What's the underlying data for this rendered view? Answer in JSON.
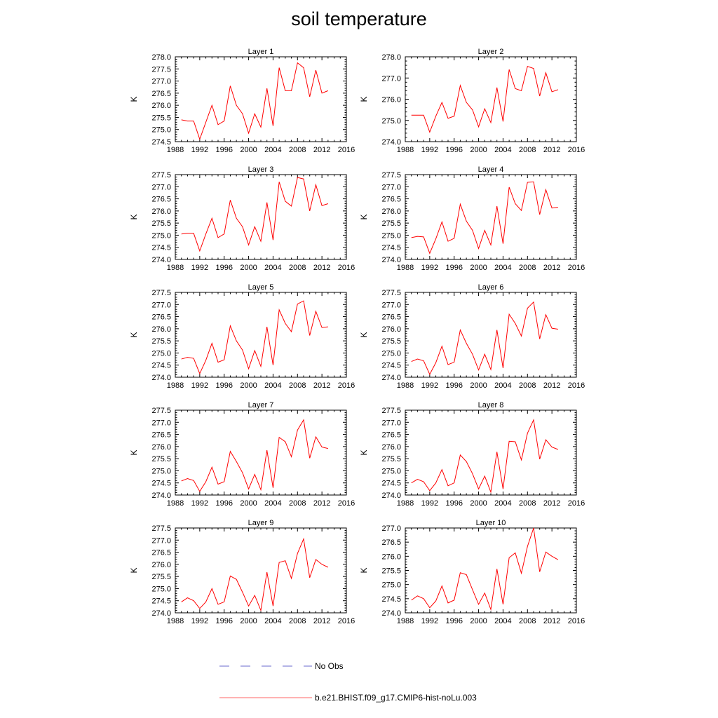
{
  "figure": {
    "title": "soil temperature",
    "legend": [
      {
        "label": "No Obs",
        "color": "#6a6acd",
        "dash": true
      },
      {
        "label": "b.e21.BHIST.f09_g17.CMIP6-hist-noLu.003",
        "color": "#ff6666",
        "dash": false
      }
    ]
  },
  "chart_data": [
    {
      "type": "line",
      "title": "Layer 1",
      "xlabel": "",
      "ylabel": "K",
      "xlim": [
        1988,
        2016
      ],
      "ylim": [
        274.5,
        278.0
      ],
      "xticks": [
        1988,
        1992,
        1996,
        2000,
        2004,
        2008,
        2012,
        2016
      ],
      "yticks": [
        274.5,
        275.0,
        275.5,
        276.0,
        276.5,
        277.0,
        277.5,
        278.0
      ],
      "series": [
        {
          "color": "#ff0000",
          "x": [
            1989,
            1990,
            1991,
            1992,
            1993,
            1994,
            1995,
            1996,
            1997,
            1998,
            1999,
            2000,
            2001,
            2002,
            2003,
            2004,
            2005,
            2006,
            2007,
            2008,
            2009,
            2010,
            2011,
            2012,
            2013
          ],
          "y": [
            275.4,
            275.35,
            275.35,
            274.6,
            275.3,
            276.0,
            275.2,
            275.35,
            276.8,
            276.0,
            275.65,
            274.85,
            275.65,
            275.1,
            276.7,
            275.15,
            277.55,
            276.6,
            276.6,
            277.75,
            277.55,
            276.35,
            277.45,
            276.5,
            276.6
          ]
        }
      ]
    },
    {
      "type": "line",
      "title": "Layer 2",
      "xlabel": "",
      "ylabel": "K",
      "xlim": [
        1988,
        2016
      ],
      "ylim": [
        274.0,
        278.0
      ],
      "xticks": [
        1988,
        1992,
        1996,
        2000,
        2004,
        2008,
        2012,
        2016
      ],
      "yticks": [
        274.0,
        275.0,
        276.0,
        277.0,
        278.0
      ],
      "series": [
        {
          "color": "#ff0000",
          "x": [
            1989,
            1990,
            1991,
            1992,
            1993,
            1994,
            1995,
            1996,
            1997,
            1998,
            1999,
            2000,
            2001,
            2002,
            2003,
            2004,
            2005,
            2006,
            2007,
            2008,
            2009,
            2010,
            2011,
            2012,
            2013
          ],
          "y": [
            275.25,
            275.25,
            275.25,
            274.45,
            275.2,
            275.85,
            275.1,
            275.2,
            276.65,
            275.85,
            275.5,
            274.7,
            275.55,
            274.9,
            276.55,
            274.95,
            277.4,
            276.5,
            276.4,
            277.55,
            277.45,
            276.15,
            277.25,
            276.35,
            276.45
          ]
        }
      ]
    },
    {
      "type": "line",
      "title": "Layer 3",
      "xlabel": "",
      "ylabel": "K",
      "xlim": [
        1988,
        2016
      ],
      "ylim": [
        274.0,
        277.5
      ],
      "xticks": [
        1988,
        1992,
        1996,
        2000,
        2004,
        2008,
        2012,
        2016
      ],
      "yticks": [
        274.0,
        274.5,
        275.0,
        275.5,
        276.0,
        276.5,
        277.0,
        277.5
      ],
      "series": [
        {
          "color": "#ff0000",
          "x": [
            1989,
            1990,
            1991,
            1992,
            1993,
            1994,
            1995,
            1996,
            1997,
            1998,
            1999,
            2000,
            2001,
            2002,
            2003,
            2004,
            2005,
            2006,
            2007,
            2008,
            2009,
            2010,
            2011,
            2012,
            2013
          ],
          "y": [
            275.05,
            275.08,
            275.08,
            274.35,
            275.05,
            275.7,
            274.9,
            275.05,
            276.45,
            275.7,
            275.35,
            274.6,
            275.35,
            274.75,
            276.35,
            274.8,
            277.2,
            276.4,
            276.2,
            277.38,
            277.32,
            276.0,
            277.08,
            276.22,
            276.3
          ]
        }
      ]
    },
    {
      "type": "line",
      "title": "Layer 4",
      "xlabel": "",
      "ylabel": "K",
      "xlim": [
        1988,
        2016
      ],
      "ylim": [
        274.0,
        277.5
      ],
      "xticks": [
        1988,
        1992,
        1996,
        2000,
        2004,
        2008,
        2012,
        2016
      ],
      "yticks": [
        274.0,
        274.5,
        275.0,
        275.5,
        276.0,
        276.5,
        277.0,
        277.5
      ],
      "series": [
        {
          "color": "#ff0000",
          "x": [
            1989,
            1990,
            1991,
            1992,
            1993,
            1994,
            1995,
            1996,
            1997,
            1998,
            1999,
            2000,
            2001,
            2002,
            2003,
            2004,
            2005,
            2006,
            2007,
            2008,
            2009,
            2010,
            2011,
            2012,
            2013
          ],
          "y": [
            274.9,
            274.95,
            274.93,
            274.25,
            274.85,
            275.55,
            274.75,
            274.87,
            276.28,
            275.58,
            275.2,
            274.45,
            275.2,
            274.6,
            276.2,
            274.65,
            276.98,
            276.3,
            276.02,
            277.18,
            277.2,
            275.85,
            276.88,
            276.12,
            276.15
          ]
        }
      ]
    },
    {
      "type": "line",
      "title": "Layer 5",
      "xlabel": "",
      "ylabel": "K",
      "xlim": [
        1988,
        2016
      ],
      "ylim": [
        274.0,
        277.5
      ],
      "xticks": [
        1988,
        1992,
        1996,
        2000,
        2004,
        2008,
        2012,
        2016
      ],
      "yticks": [
        274.0,
        274.5,
        275.0,
        275.5,
        276.0,
        276.5,
        277.0,
        277.5
      ],
      "series": [
        {
          "color": "#ff0000",
          "x": [
            1989,
            1990,
            1991,
            1992,
            1993,
            1994,
            1995,
            1996,
            1997,
            1998,
            1999,
            2000,
            2001,
            2002,
            2003,
            2004,
            2005,
            2006,
            2007,
            2008,
            2009,
            2010,
            2011,
            2012,
            2013
          ],
          "y": [
            274.75,
            274.82,
            274.78,
            274.15,
            274.7,
            275.4,
            274.62,
            274.72,
            276.12,
            275.5,
            275.12,
            274.35,
            275.1,
            274.45,
            276.08,
            274.5,
            276.78,
            276.22,
            275.88,
            277.02,
            277.15,
            275.72,
            276.72,
            276.05,
            276.08
          ]
        }
      ]
    },
    {
      "type": "line",
      "title": "Layer 6",
      "xlabel": "",
      "ylabel": "K",
      "xlim": [
        1988,
        2016
      ],
      "ylim": [
        274.0,
        277.5
      ],
      "xticks": [
        1988,
        1992,
        1996,
        2000,
        2004,
        2008,
        2012,
        2016
      ],
      "yticks": [
        274.0,
        274.5,
        275.0,
        275.5,
        276.0,
        276.5,
        277.0,
        277.5
      ],
      "series": [
        {
          "color": "#ff0000",
          "x": [
            1989,
            1990,
            1991,
            1992,
            1993,
            1994,
            1995,
            1996,
            1997,
            1998,
            1999,
            2000,
            2001,
            2002,
            2003,
            2004,
            2005,
            2006,
            2007,
            2008,
            2009,
            2010,
            2011,
            2012,
            2013
          ],
          "y": [
            274.65,
            274.75,
            274.68,
            274.12,
            274.6,
            275.28,
            274.52,
            274.62,
            275.95,
            275.4,
            274.95,
            274.3,
            274.95,
            274.32,
            275.95,
            274.38,
            276.6,
            276.22,
            275.7,
            276.85,
            277.1,
            275.58,
            276.58,
            276.02,
            275.98
          ]
        }
      ]
    },
    {
      "type": "line",
      "title": "Layer 7",
      "xlabel": "",
      "ylabel": "K",
      "xlim": [
        1988,
        2016
      ],
      "ylim": [
        274.0,
        277.5
      ],
      "xticks": [
        1988,
        1992,
        1996,
        2000,
        2004,
        2008,
        2012,
        2016
      ],
      "yticks": [
        274.0,
        274.5,
        275.0,
        275.5,
        276.0,
        276.5,
        277.0,
        277.5
      ],
      "series": [
        {
          "color": "#ff0000",
          "x": [
            1989,
            1990,
            1991,
            1992,
            1993,
            1994,
            1995,
            1996,
            1997,
            1998,
            1999,
            2000,
            2001,
            2002,
            2003,
            2004,
            2005,
            2006,
            2007,
            2008,
            2009,
            2010,
            2011,
            2012,
            2013
          ],
          "y": [
            274.58,
            274.68,
            274.6,
            274.15,
            274.55,
            275.15,
            274.45,
            274.55,
            275.8,
            275.38,
            274.92,
            274.25,
            274.85,
            274.22,
            275.85,
            274.3,
            276.38,
            276.2,
            275.58,
            276.68,
            277.1,
            275.52,
            276.4,
            275.98,
            275.92
          ]
        }
      ]
    },
    {
      "type": "line",
      "title": "Layer 8",
      "xlabel": "",
      "ylabel": "K",
      "xlim": [
        1988,
        2016
      ],
      "ylim": [
        274.0,
        277.5
      ],
      "xticks": [
        1988,
        1992,
        1996,
        2000,
        2004,
        2008,
        2012,
        2016
      ],
      "yticks": [
        274.0,
        274.5,
        275.0,
        275.5,
        276.0,
        276.5,
        277.0,
        277.5
      ],
      "series": [
        {
          "color": "#ff0000",
          "x": [
            1989,
            1990,
            1991,
            1992,
            1993,
            1994,
            1995,
            1996,
            1997,
            1998,
            1999,
            2000,
            2001,
            2002,
            2003,
            2004,
            2005,
            2006,
            2007,
            2008,
            2009,
            2010,
            2011,
            2012,
            2013
          ],
          "y": [
            274.5,
            274.65,
            274.55,
            274.18,
            274.5,
            275.05,
            274.38,
            274.5,
            275.65,
            275.38,
            274.88,
            274.25,
            274.78,
            274.12,
            275.78,
            274.25,
            276.22,
            276.2,
            275.45,
            276.55,
            277.1,
            275.48,
            276.28,
            275.98,
            275.88
          ]
        }
      ]
    },
    {
      "type": "line",
      "title": "Layer 9",
      "xlabel": "",
      "ylabel": "K",
      "xlim": [
        1988,
        2016
      ],
      "ylim": [
        274.0,
        277.5
      ],
      "xticks": [
        1988,
        1992,
        1996,
        2000,
        2004,
        2008,
        2012,
        2016
      ],
      "yticks": [
        274.0,
        274.5,
        275.0,
        275.5,
        276.0,
        276.5,
        277.0,
        277.5
      ],
      "series": [
        {
          "color": "#ff0000",
          "x": [
            1989,
            1990,
            1991,
            1992,
            1993,
            1994,
            1995,
            1996,
            1997,
            1998,
            1999,
            2000,
            2001,
            2002,
            2003,
            2004,
            2005,
            2006,
            2007,
            2008,
            2009,
            2010,
            2011,
            2012,
            2013
          ],
          "y": [
            274.45,
            274.62,
            274.5,
            274.18,
            274.45,
            275.0,
            274.35,
            274.45,
            275.52,
            275.38,
            274.85,
            274.28,
            274.72,
            274.1,
            275.68,
            274.28,
            276.08,
            276.15,
            275.42,
            276.45,
            277.05,
            275.45,
            276.2,
            276.0,
            275.88
          ]
        }
      ]
    },
    {
      "type": "line",
      "title": "Layer 10",
      "xlabel": "",
      "ylabel": "K",
      "xlim": [
        1988,
        2016
      ],
      "ylim": [
        274.0,
        277.0
      ],
      "xticks": [
        1988,
        1992,
        1996,
        2000,
        2004,
        2008,
        2012,
        2016
      ],
      "yticks": [
        274.0,
        274.5,
        275.0,
        275.5,
        276.0,
        276.5,
        277.0
      ],
      "series": [
        {
          "color": "#ff0000",
          "x": [
            1989,
            1990,
            1991,
            1992,
            1993,
            1994,
            1995,
            1996,
            1997,
            1998,
            1999,
            2000,
            2001,
            2002,
            2003,
            2004,
            2005,
            2006,
            2007,
            2008,
            2009,
            2010,
            2011,
            2012,
            2013
          ],
          "y": [
            274.45,
            274.6,
            274.5,
            274.18,
            274.42,
            274.95,
            274.35,
            274.45,
            275.42,
            275.35,
            274.82,
            274.3,
            274.7,
            274.12,
            275.55,
            274.3,
            275.95,
            276.12,
            275.4,
            276.35,
            277.0,
            275.45,
            276.15,
            276.0,
            275.88
          ]
        }
      ]
    }
  ]
}
